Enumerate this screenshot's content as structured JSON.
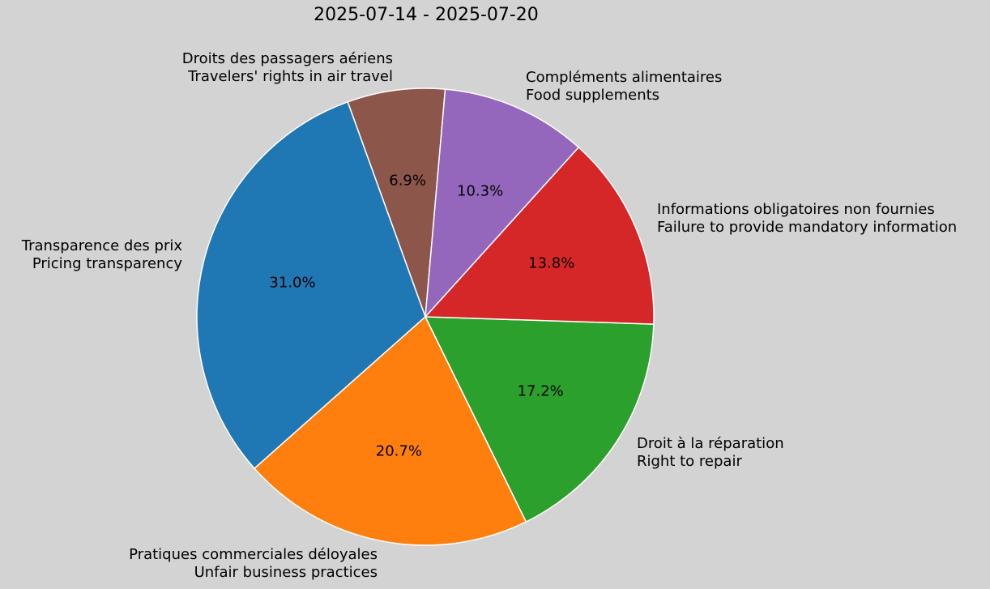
{
  "chart_data": {
    "type": "pie",
    "title": "2025-07-14 - 2025-07-20",
    "start_angle_deg": 85,
    "slices": [
      {
        "label_fr": "Droits des passagers aériens",
        "label_en": "Travelers' rights in air travel",
        "value": 6.9,
        "pct_label": "6.9%",
        "color": "#8c564b"
      },
      {
        "label_fr": "Transparence des prix",
        "label_en": "Pricing transparency",
        "value": 31.0,
        "pct_label": "31.0%",
        "color": "#1f77b4"
      },
      {
        "label_fr": "Pratiques commerciales déloyales",
        "label_en": "Unfair business practices",
        "value": 20.7,
        "pct_label": "20.7%",
        "color": "#ff7f0e"
      },
      {
        "label_fr": "Droit à la réparation",
        "label_en": "Right to repair",
        "value": 17.2,
        "pct_label": "17.2%",
        "color": "#2ca02c"
      },
      {
        "label_fr": "Informations obligatoires non fournies",
        "label_en": "Failure to provide mandatory information",
        "value": 13.8,
        "pct_label": "13.8%",
        "color": "#d62728"
      },
      {
        "label_fr": "Compléments alimentaires",
        "label_en": "Food supplements",
        "value": 10.3,
        "pct_label": "10.3%",
        "color": "#9467bd"
      }
    ]
  }
}
